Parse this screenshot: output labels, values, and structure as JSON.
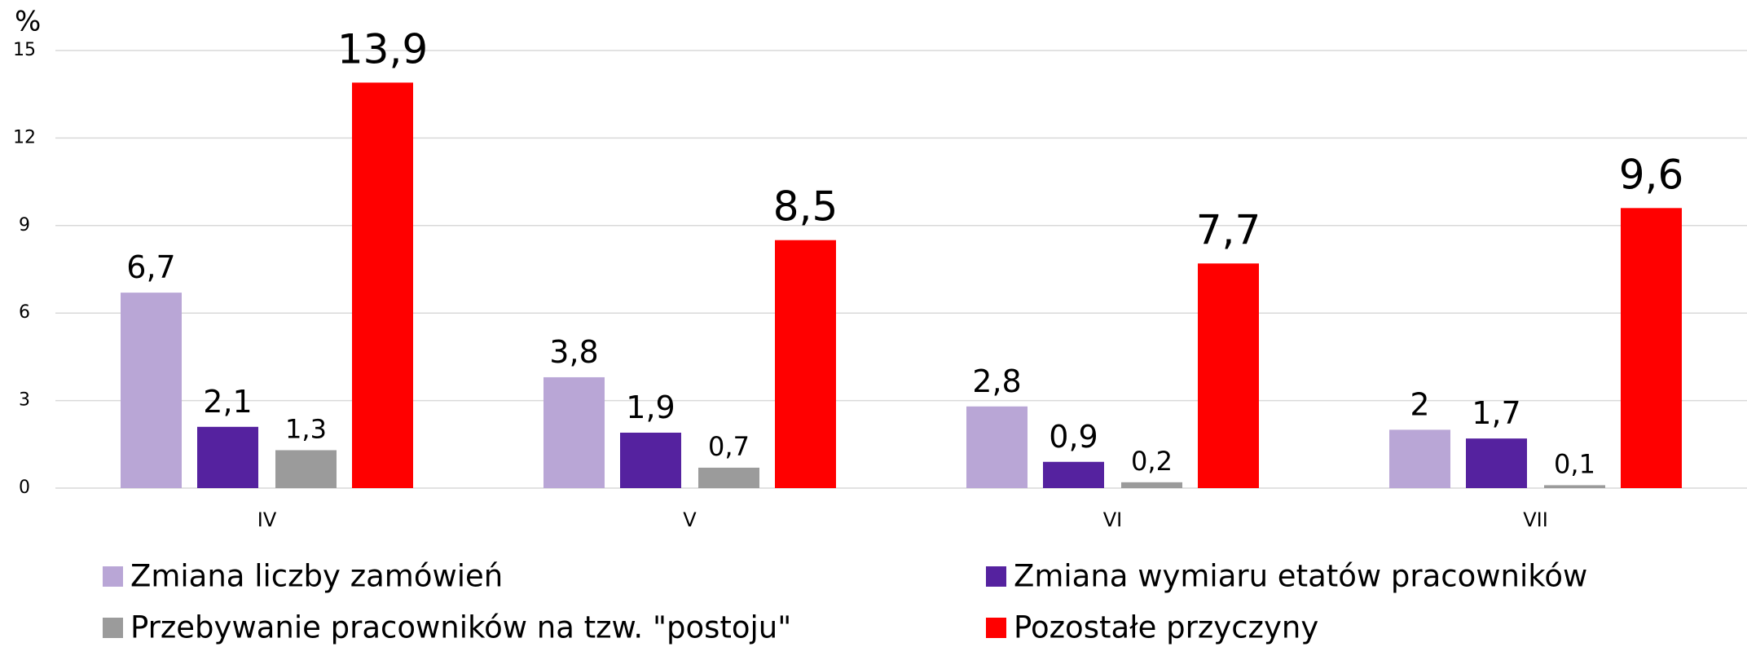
{
  "chart_data": {
    "type": "bar",
    "y_label": "%",
    "categories": [
      "IV",
      "V",
      "VI",
      "VII"
    ],
    "series": [
      {
        "name": "Zmiana liczby zamówień",
        "color": "#b9a6d6",
        "values": [
          6.7,
          3.8,
          2.8,
          2
        ],
        "value_labels": [
          "6,7",
          "3,8",
          "2,8",
          "2"
        ]
      },
      {
        "name": "Zmiana wymiaru etatów pracowników",
        "color": "#55229f",
        "values": [
          2.1,
          1.9,
          0.9,
          1.7
        ],
        "value_labels": [
          "2,1",
          "1,9",
          "0,9",
          "1,7"
        ]
      },
      {
        "name": "Przebywanie pracowników na tzw. \"postoju\"",
        "color": "#9b9b9b",
        "values": [
          1.3,
          0.7,
          0.2,
          0.1
        ],
        "value_labels": [
          "1,3",
          "0,7",
          "0,2",
          "0,1"
        ]
      },
      {
        "name": "Pozostałe przyczyny",
        "color": "#ff0000",
        "values": [
          13.9,
          8.5,
          7.7,
          9.6
        ],
        "value_labels": [
          "13,9",
          "8,5",
          "7,7",
          "9,6"
        ]
      }
    ],
    "ylim": [
      0,
      15
    ],
    "yticks": [
      0,
      3,
      6,
      9,
      12,
      15
    ],
    "grid": true,
    "legend": "bottom"
  }
}
